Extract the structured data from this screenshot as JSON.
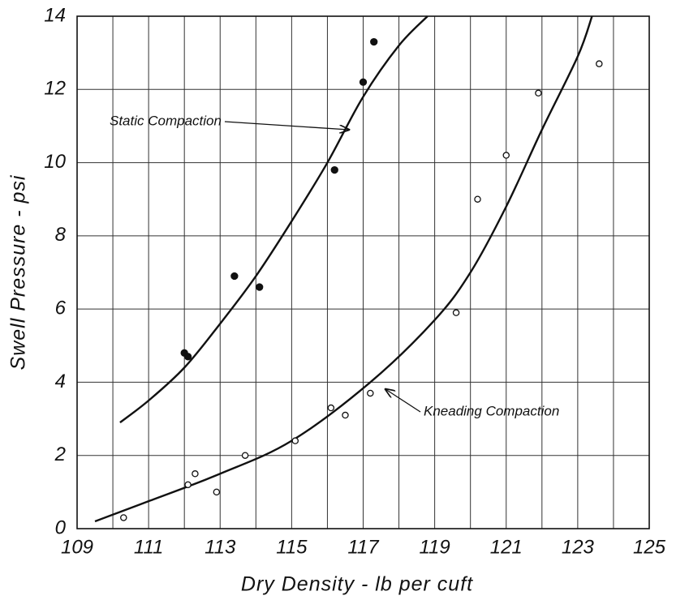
{
  "chart_data": {
    "type": "scatter",
    "x_label": "Dry Density - lb per cuft",
    "y_label": "Swell Pressure - psi",
    "xlim": [
      109,
      125
    ],
    "ylim": [
      0,
      14
    ],
    "xticks": [
      109,
      111,
      113,
      115,
      117,
      119,
      121,
      123,
      125
    ],
    "yticks": [
      0,
      2,
      4,
      6,
      8,
      10,
      12,
      14
    ],
    "xgrid": [
      109,
      110,
      111,
      112,
      113,
      114,
      115,
      116,
      117,
      118,
      119,
      120,
      121,
      122,
      123,
      124,
      125
    ],
    "grid": true,
    "series": [
      {
        "name": "Static Compaction",
        "color": "#111111",
        "marker": "filled",
        "x": [
          112.0,
          112.1,
          113.4,
          114.1,
          116.2,
          117.0,
          117.3
        ],
        "values": [
          4.8,
          4.7,
          6.9,
          6.6,
          9.8,
          12.2,
          13.3
        ],
        "curve": {
          "x": [
            110.2,
            111,
            112,
            113,
            114,
            115,
            116,
            117,
            118,
            118.8
          ],
          "values": [
            2.9,
            3.5,
            4.4,
            5.6,
            6.9,
            8.4,
            10.0,
            11.8,
            13.2,
            14
          ]
        }
      },
      {
        "name": "Kneading Compaction",
        "color": "#111111",
        "marker": "open",
        "x": [
          110.3,
          112.1,
          112.3,
          112.9,
          113.7,
          115.1,
          116.1,
          116.5,
          117.2,
          119.6,
          120.2,
          121.0,
          121.9,
          123.6
        ],
        "values": [
          0.3,
          1.2,
          1.5,
          1.0,
          2.0,
          2.4,
          3.3,
          3.1,
          3.7,
          5.9,
          9.0,
          10.2,
          11.9,
          12.7
        ],
        "curve": {
          "x": [
            109.5,
            111,
            113,
            115,
            117.2,
            119,
            120,
            121,
            122,
            123,
            123.4
          ],
          "values": [
            0.2,
            0.75,
            1.5,
            2.4,
            4.0,
            5.7,
            7.0,
            8.8,
            10.9,
            12.9,
            14
          ]
        }
      }
    ]
  }
}
